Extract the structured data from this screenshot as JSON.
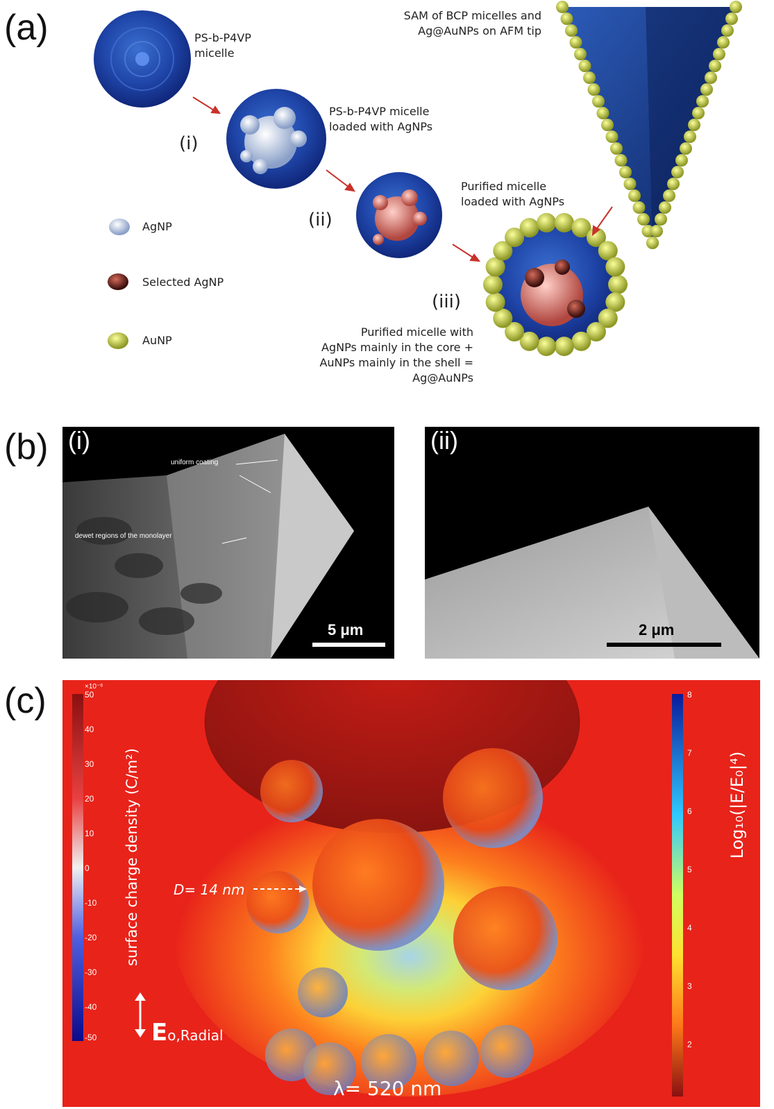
{
  "panel_a": {
    "letter": "(a)",
    "micelle_label": [
      "PS-b-P4VP",
      "micelle"
    ],
    "loaded_label": [
      "PS-b-P4VP micelle",
      "loaded with AgNPs"
    ],
    "purified_label": [
      "Purified micelle",
      "loaded with AgNPs"
    ],
    "sam_label": [
      "SAM of BCP micelles and",
      "Ag@AuNPs on AFM tip"
    ],
    "steps": [
      "(i)",
      "(ii)",
      "(iii)"
    ],
    "final_label": [
      "Purified micelle with",
      "AgNPs mainly in the core +",
      "AuNPs mainly in the shell =",
      "Ag@AuNPs"
    ],
    "legend": [
      "AgNP",
      "Selected AgNP",
      "AuNP"
    ]
  },
  "panel_b": {
    "letter": "(b)",
    "left": {
      "roman": "(i)",
      "annot_uniform": "uniform coating",
      "annot_dewet": "dewet regions of the monolayer",
      "scale": "5 μm"
    },
    "right": {
      "roman": "(ii)",
      "scale": "2 μm"
    }
  },
  "panel_c": {
    "letter": "(c)",
    "left_bar": {
      "label": "surface charge density (C/m²)",
      "exponent": "×10⁻⁶",
      "ticks": [
        "50",
        "40",
        "30",
        "20",
        "10",
        "0",
        "-10",
        "-20",
        "-30",
        "-40",
        "-50"
      ]
    },
    "right_bar": {
      "label": "Log₁₀(|E/E₀|⁴)",
      "ticks": [
        "8",
        "7",
        "6",
        "5",
        "4",
        "3",
        "2"
      ]
    },
    "diameter": "D= 14 nm",
    "field": "E",
    "field_sub": "o,Radial",
    "wavelength": "λ= 520 nm"
  },
  "colors": {
    "micelle_blue": "#1c3f96",
    "ag_red": "#c9574f",
    "au_yellow": "#d8dc6a",
    "field_red": "#e8231a"
  }
}
